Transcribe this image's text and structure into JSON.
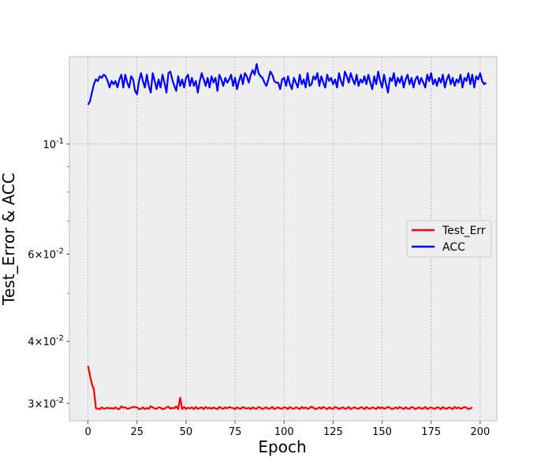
{
  "chart_data": {
    "type": "line",
    "xlabel": "Epoch",
    "ylabel": "Test_Error & ACC",
    "yscale": "log",
    "xlim": [
      -9.5,
      208.5
    ],
    "ylim": [
      0.02766,
      0.15
    ],
    "grid": true,
    "legend_position": "center-right",
    "x_ticks": [
      0,
      25,
      50,
      75,
      100,
      125,
      150,
      175,
      200
    ],
    "x_tick_labels": [
      "0",
      "25",
      "50",
      "75",
      "100",
      "125",
      "150",
      "175",
      "200"
    ],
    "y_ticks": [
      0.1,
      0.06,
      0.04,
      0.03
    ],
    "y_tick_labels": [
      "10^-1",
      "6×10^-2",
      "4×10^-2",
      "3×10^-2"
    ],
    "y_minor_ticks": [
      0.09,
      0.08,
      0.07,
      0.05
    ],
    "series": [
      {
        "name": "Test_Err",
        "color": "#ff0000",
        "x_start": 0,
        "x_step": 1,
        "values": [
          0.0357,
          0.0341,
          0.0328,
          0.032,
          0.02935,
          0.02925,
          0.0292,
          0.02945,
          0.02925,
          0.0293,
          0.0294,
          0.0293,
          0.02935,
          0.02925,
          0.02945,
          0.02925,
          0.0292,
          0.0296,
          0.0294,
          0.02945,
          0.02925,
          0.0293,
          0.0294,
          0.0295,
          0.0295,
          0.02945,
          0.0292,
          0.02925,
          0.02945,
          0.0292,
          0.02935,
          0.02925,
          0.0296,
          0.02945,
          0.0293,
          0.02925,
          0.02945,
          0.0294,
          0.0292,
          0.02925,
          0.02945,
          0.02955,
          0.02925,
          0.0294,
          0.0293,
          0.0296,
          0.0292,
          0.0308,
          0.0292,
          0.0295,
          0.02925,
          0.0294,
          0.0293,
          0.02945,
          0.0292,
          0.0295,
          0.02925,
          0.02935,
          0.02945,
          0.0292,
          0.0295,
          0.0293,
          0.0294,
          0.02925,
          0.02945,
          0.0293,
          0.0292,
          0.0295,
          0.02935,
          0.02925,
          0.02945,
          0.0293,
          0.0295,
          0.0294,
          0.02935,
          0.0292,
          0.02945,
          0.0293,
          0.02925,
          0.0295,
          0.02935,
          0.0293,
          0.0294,
          0.0292,
          0.02945,
          0.0293,
          0.02925,
          0.0295,
          0.0294,
          0.0292,
          0.02935,
          0.02945,
          0.02925,
          0.0293,
          0.0295,
          0.0292,
          0.02935,
          0.02945,
          0.0293,
          0.02925,
          0.02945,
          0.0294,
          0.0292,
          0.0295,
          0.0293,
          0.02925,
          0.02945,
          0.02935,
          0.0292,
          0.0295,
          0.0293,
          0.02945,
          0.02925,
          0.02935,
          0.02955,
          0.0294,
          0.0292,
          0.0293,
          0.02945,
          0.02925,
          0.0295,
          0.02935,
          0.0292,
          0.02945,
          0.0293,
          0.02925,
          0.0295,
          0.0294,
          0.0292,
          0.02935,
          0.02945,
          0.02925,
          0.0293,
          0.0295,
          0.0292,
          0.02935,
          0.02945,
          0.0293,
          0.02925,
          0.02945,
          0.0294,
          0.0292,
          0.0295,
          0.0293,
          0.02925,
          0.02945,
          0.02935,
          0.0292,
          0.0295,
          0.0293,
          0.02945,
          0.02925,
          0.02935,
          0.0295,
          0.0294,
          0.0292,
          0.0293,
          0.02945,
          0.02925,
          0.0295,
          0.02935,
          0.0292,
          0.02945,
          0.0293,
          0.02925,
          0.0295,
          0.0294,
          0.0292,
          0.02935,
          0.02945,
          0.02925,
          0.0293,
          0.0295,
          0.0292,
          0.02935,
          0.02945,
          0.0293,
          0.02925,
          0.02945,
          0.0294,
          0.0292,
          0.0295,
          0.0293,
          0.02925,
          0.02945,
          0.02935,
          0.0292,
          0.0295,
          0.0293,
          0.02945,
          0.02925,
          0.02935,
          0.0295,
          0.0294,
          0.0292,
          0.0293,
          0.02945
        ]
      },
      {
        "name": "ACC",
        "color": "#0000ff",
        "x_start": 0,
        "x_step": 1,
        "values": [
          0.12,
          0.122,
          0.127,
          0.132,
          0.135,
          0.134,
          0.137,
          0.136,
          0.138,
          0.137,
          0.134,
          0.13,
          0.134,
          0.132,
          0.134,
          0.13,
          0.135,
          0.138,
          0.13,
          0.138,
          0.133,
          0.13,
          0.137,
          0.135,
          0.128,
          0.126,
          0.134,
          0.139,
          0.134,
          0.13,
          0.138,
          0.131,
          0.127,
          0.139,
          0.134,
          0.129,
          0.135,
          0.13,
          0.138,
          0.133,
          0.127,
          0.139,
          0.14,
          0.135,
          0.131,
          0.128,
          0.137,
          0.131,
          0.135,
          0.13,
          0.136,
          0.138,
          0.131,
          0.136,
          0.131,
          0.134,
          0.127,
          0.134,
          0.139,
          0.135,
          0.131,
          0.136,
          0.13,
          0.137,
          0.133,
          0.136,
          0.128,
          0.138,
          0.135,
          0.131,
          0.136,
          0.133,
          0.135,
          0.138,
          0.131,
          0.136,
          0.129,
          0.134,
          0.138,
          0.132,
          0.139,
          0.137,
          0.133,
          0.138,
          0.141,
          0.138,
          0.145,
          0.139,
          0.137,
          0.136,
          0.133,
          0.131,
          0.135,
          0.14,
          0.138,
          0.134,
          0.133,
          0.133,
          0.129,
          0.135,
          0.136,
          0.131,
          0.137,
          0.132,
          0.129,
          0.136,
          0.133,
          0.13,
          0.138,
          0.132,
          0.135,
          0.13,
          0.139,
          0.131,
          0.132,
          0.137,
          0.135,
          0.139,
          0.131,
          0.137,
          0.133,
          0.13,
          0.138,
          0.134,
          0.136,
          0.132,
          0.135,
          0.13,
          0.139,
          0.134,
          0.131,
          0.14,
          0.137,
          0.133,
          0.139,
          0.135,
          0.132,
          0.138,
          0.131,
          0.135,
          0.133,
          0.137,
          0.132,
          0.138,
          0.133,
          0.129,
          0.137,
          0.132,
          0.14,
          0.134,
          0.13,
          0.138,
          0.132,
          0.127,
          0.136,
          0.134,
          0.139,
          0.131,
          0.136,
          0.133,
          0.137,
          0.13,
          0.135,
          0.138,
          0.132,
          0.136,
          0.13,
          0.135,
          0.137,
          0.132,
          0.136,
          0.133,
          0.13,
          0.138,
          0.134,
          0.139,
          0.132,
          0.135,
          0.131,
          0.136,
          0.133,
          0.138,
          0.13,
          0.135,
          0.138,
          0.132,
          0.136,
          0.131,
          0.135,
          0.133,
          0.138,
          0.13,
          0.136,
          0.134,
          0.139,
          0.132,
          0.138,
          0.13,
          0.137,
          0.135,
          0.139,
          0.134,
          0.132,
          0.133
        ]
      }
    ]
  }
}
